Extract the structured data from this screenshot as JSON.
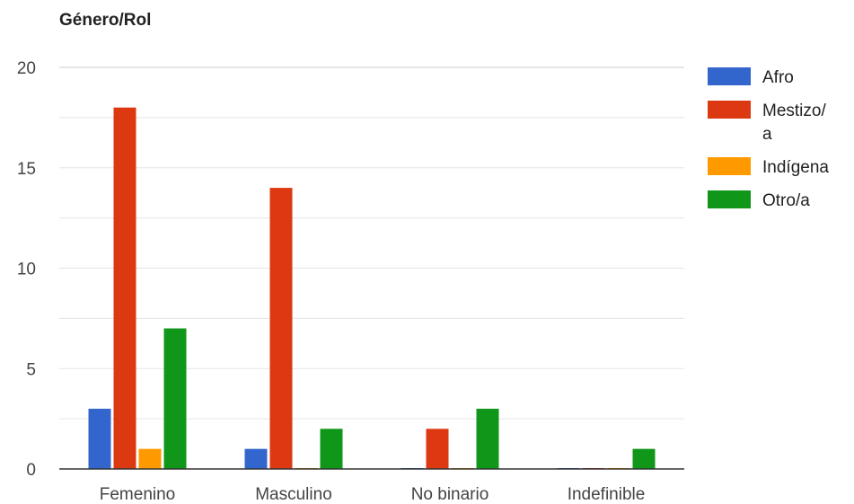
{
  "chart_data": {
    "type": "bar",
    "title": "Género/Rol",
    "xlabel": "",
    "ylabel": "",
    "categories": [
      "Femenino",
      "Masculino",
      "No binario",
      "Indefinible"
    ],
    "series": [
      {
        "name": "Afro",
        "values": [
          3,
          1,
          0,
          0
        ],
        "color": "#3366cc"
      },
      {
        "name": "Mestizo/a",
        "values": [
          18,
          14,
          2,
          0
        ],
        "color": "#dc3912"
      },
      {
        "name": "Indígena",
        "values": [
          1,
          0,
          0,
          0
        ],
        "color": "#ff9900"
      },
      {
        "name": "Otro/a",
        "values": [
          7,
          2,
          3,
          1
        ],
        "color": "#109618"
      }
    ],
    "yticks": [
      0,
      5,
      10,
      15,
      20
    ],
    "ylim": [
      0,
      20
    ],
    "grid": true,
    "legend": "right"
  }
}
